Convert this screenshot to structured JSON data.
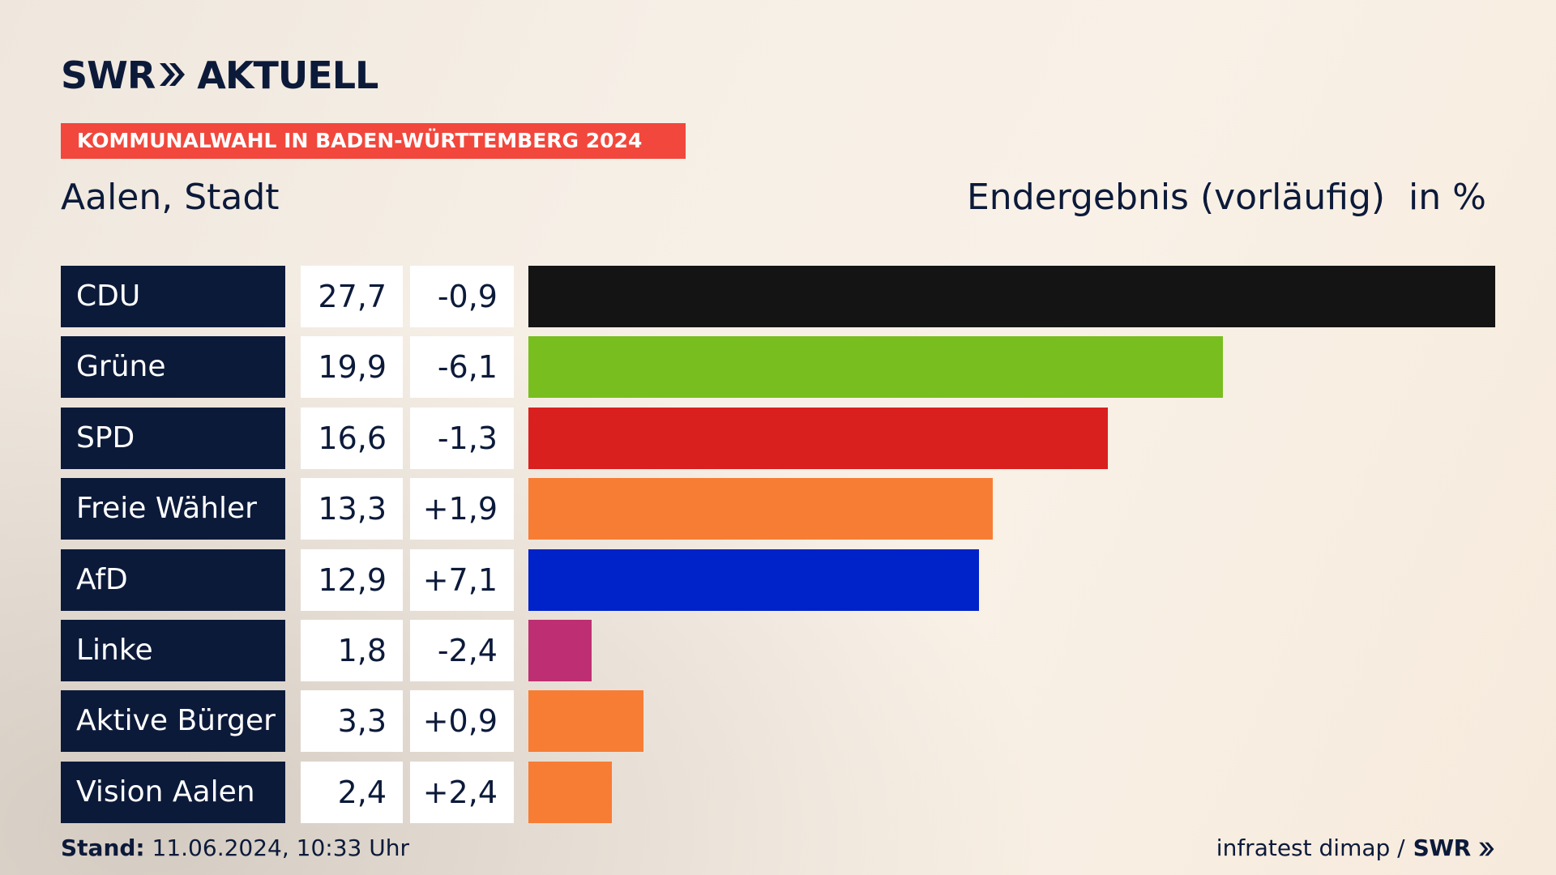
{
  "brand": {
    "logo_left": "SWR",
    "logo_right": "AKTUELL",
    "footer_logo": "SWR"
  },
  "banner": {
    "label": "KOMMUNALWAHL IN BADEN-WÜRTTEMBERG 2024",
    "color": "#f2473c"
  },
  "header": {
    "place": "Aalen, Stadt",
    "result_status": "Endergebnis (vorläufig)",
    "unit": "in %"
  },
  "footer": {
    "stand_label": "Stand:",
    "stand_value": "11.06.2024, 10:33 Uhr",
    "source": "infratest dimap /"
  },
  "chart_data": {
    "type": "bar",
    "orientation": "horizontal",
    "title": "Aalen, Stadt",
    "subtitle": "Endergebnis (vorläufig)",
    "unit": "in %",
    "grid": false,
    "xlim": [
      0,
      27.7
    ],
    "categories": [
      "CDU",
      "Grüne",
      "SPD",
      "Freie Wähler",
      "AfD",
      "Linke",
      "Aktive Bürger",
      "Vision Aalen"
    ],
    "values": [
      27.7,
      19.9,
      16.6,
      13.3,
      12.9,
      1.8,
      3.3,
      2.4
    ],
    "value_labels": [
      "27,7",
      "19,9",
      "16,6",
      "13,3",
      "12,9",
      "1,8",
      "3,3",
      "2,4"
    ],
    "change_labels": [
      "-0,9",
      "-6,1",
      "-1,3",
      "+1,9",
      "+7,1",
      "-2,4",
      "+0,9",
      "+2,4"
    ],
    "colors": [
      "#141414",
      "#78be1e",
      "#d9201f",
      "#f77d35",
      "#0022c9",
      "#bd2f72",
      "#f77d35",
      "#f77d35"
    ]
  }
}
